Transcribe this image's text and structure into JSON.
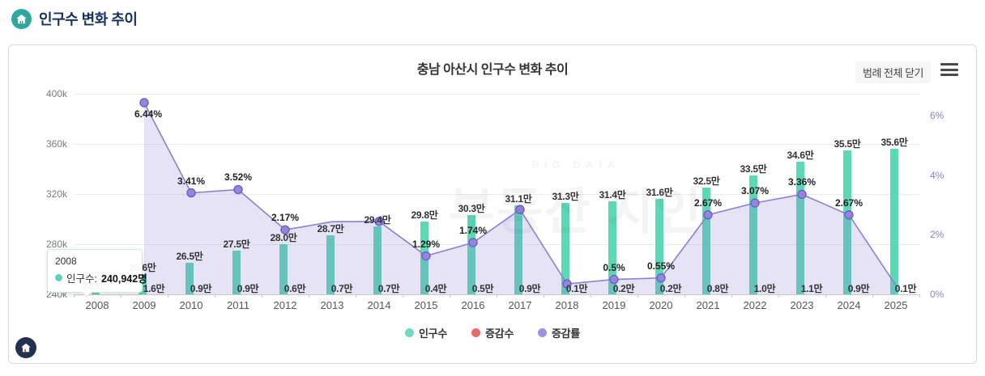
{
  "page_header": {
    "title": "인구수 변화 추이"
  },
  "card": {
    "title": "충남 아산시 인구수 변화 추이",
    "legend_close_label": "범례 전체 닫기"
  },
  "tooltip": {
    "year": "2008",
    "series_label": "인구수:",
    "value": "240,942명"
  },
  "legend": [
    {
      "label": "인구수",
      "color": "#6fd8c0"
    },
    {
      "label": "증감수",
      "color": "#e96b6b"
    },
    {
      "label": "증감률",
      "color": "#9d92e2"
    }
  ],
  "watermark": {
    "line1": "BIG DATA",
    "line2": "부동산 지인"
  },
  "chart_data": {
    "type": "bar+line combo",
    "title": "충남 아산시 인구수 변화 추이",
    "categories": [
      2008,
      2009,
      2010,
      2011,
      2012,
      2013,
      2014,
      2015,
      2016,
      2017,
      2018,
      2019,
      2020,
      2021,
      2022,
      2023,
      2024,
      2025
    ],
    "left_axis": {
      "label": "인구수",
      "unit": "k",
      "min": 240,
      "max": 400,
      "ticks": [
        {
          "label": "400k",
          "value": 400
        },
        {
          "label": "360k",
          "value": 360
        },
        {
          "label": "320k",
          "value": 320
        },
        {
          "label": "280k",
          "value": 280
        },
        {
          "label": "240k",
          "value": 240
        }
      ]
    },
    "right_axis": {
      "label": "증감률",
      "unit": "%",
      "min": 0,
      "ticks": [
        {
          "label": "6%",
          "value": 6
        },
        {
          "label": "4%",
          "value": 4
        },
        {
          "label": "2%",
          "value": 2
        },
        {
          "label": "0%",
          "value": 0
        }
      ]
    },
    "series": [
      {
        "name": "인구수",
        "type": "bar",
        "color": "#5cd8b5",
        "values_thousands": [
          241,
          256,
          265,
          275,
          280,
          287,
          294,
          298,
          303,
          311,
          313,
          314,
          316,
          325,
          335,
          346,
          355,
          356
        ],
        "labels": [
          "24.1만",
          "25.6만",
          "26.5만",
          "27.5만",
          "28.0만",
          "28.7만",
          "29.4만",
          "29.8만",
          "30.3만",
          "31.1만",
          "31.3만",
          "31.4만",
          "31.6만",
          "32.5만",
          "33.5만",
          "34.6만",
          "35.5만",
          "35.6만"
        ]
      },
      {
        "name": "증감수",
        "type": "bar",
        "color": "#e96b6b",
        "labels": [
          null,
          "1.6만",
          "0.9만",
          "0.9만",
          "0.6만",
          "0.7만",
          "0.7만",
          "0.4만",
          "0.5만",
          "0.9만",
          "0.1만",
          "0.2만",
          "0.2만",
          "0.8만",
          "1.0만",
          "1.1만",
          "0.9만",
          "0.1만"
        ]
      },
      {
        "name": "증감률",
        "type": "line",
        "color": "#8b7fd6",
        "area_fill": "rgba(139,127,214,0.22)",
        "dot_fill": "#9186dc",
        "dot_stroke": "#6c5fc7",
        "values_pct": [
          null,
          6.44,
          3.41,
          3.52,
          2.17,
          2.44,
          2.45,
          1.29,
          1.74,
          2.85,
          0.35,
          0.5,
          0.55,
          2.67,
          3.07,
          3.36,
          2.67,
          0.3
        ],
        "labels": [
          null,
          "6.44%",
          "3.41%",
          "3.52%",
          "2.17%",
          null,
          null,
          "1.29%",
          "1.74%",
          null,
          null,
          "0.5%",
          "0.55%",
          "2.67%",
          "3.07%",
          "3.36%",
          "2.67%",
          null
        ],
        "dot_years": [
          2009,
          2010,
          2011,
          2012,
          2014,
          2015,
          2016,
          2017,
          2018,
          2019,
          2020,
          2021,
          2022,
          2023,
          2024
        ]
      }
    ]
  }
}
